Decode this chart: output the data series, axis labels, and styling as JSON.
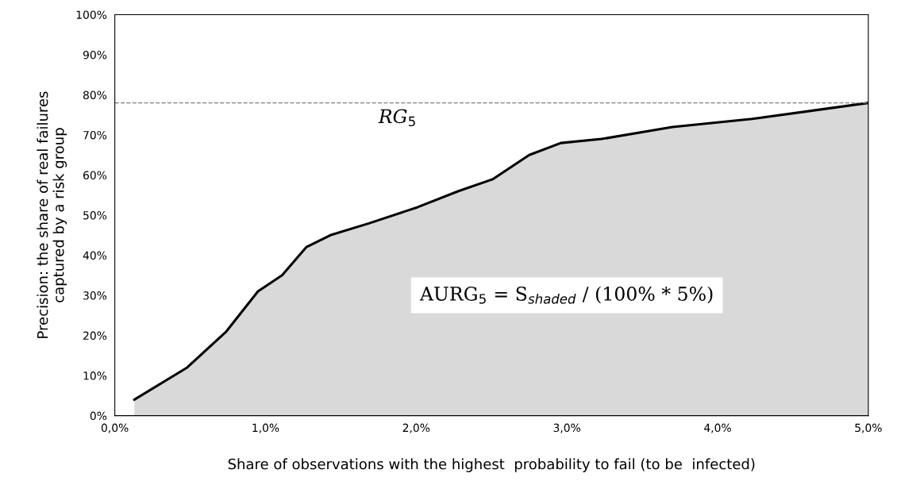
{
  "chart_data": {
    "type": "area",
    "xlabel": "Share of observations with the highest  probability to fail (to be  infected)",
    "ylabel": "Precision: the share of real failures\ncaptured by a risk group",
    "x": [
      0.13,
      0.48,
      0.74,
      0.95,
      1.11,
      1.27,
      1.43,
      1.69,
      2.01,
      2.28,
      2.51,
      2.75,
      2.96,
      3.23,
      3.7,
      4.23,
      5.0
    ],
    "series": [
      {
        "color": "#d9d9d9",
        "values": [
          4,
          12,
          21,
          31,
          35,
          42,
          45,
          48,
          52,
          56,
          59,
          65,
          68,
          69,
          72,
          74,
          78
        ]
      }
    ],
    "xlim": [
      0,
      5
    ],
    "ylim": [
      0,
      100
    ],
    "xticks": [
      {
        "value": 0,
        "label": "0,0%"
      },
      {
        "value": 1,
        "label": "1,0%"
      },
      {
        "value": 2,
        "label": "2,0%"
      },
      {
        "value": 3,
        "label": "3,0%"
      },
      {
        "value": 4,
        "label": "4,0%"
      },
      {
        "value": 5,
        "label": "5,0%"
      }
    ],
    "yticks": [
      {
        "value": 0,
        "label": "0%"
      },
      {
        "value": 10,
        "label": "10%"
      },
      {
        "value": 20,
        "label": "20%"
      },
      {
        "value": 30,
        "label": "30%"
      },
      {
        "value": 40,
        "label": "40%"
      },
      {
        "value": 50,
        "label": "50%"
      },
      {
        "value": 60,
        "label": "60%"
      },
      {
        "value": 70,
        "label": "70%"
      },
      {
        "value": 80,
        "label": "80%"
      },
      {
        "value": 90,
        "label": "90%"
      },
      {
        "value": 100,
        "label": "100%"
      }
    ],
    "ref_lines": [
      {
        "axis": "y",
        "value": 78,
        "label": "RG$_{5}$",
        "color": "#808080",
        "line_style": "dashed"
      }
    ],
    "annotations": [
      "AURG$_{5}$ = S$_{shaded}$ / (100% * 5%)"
    ],
    "grid": false,
    "legend": false,
    "line_style": "solid"
  }
}
